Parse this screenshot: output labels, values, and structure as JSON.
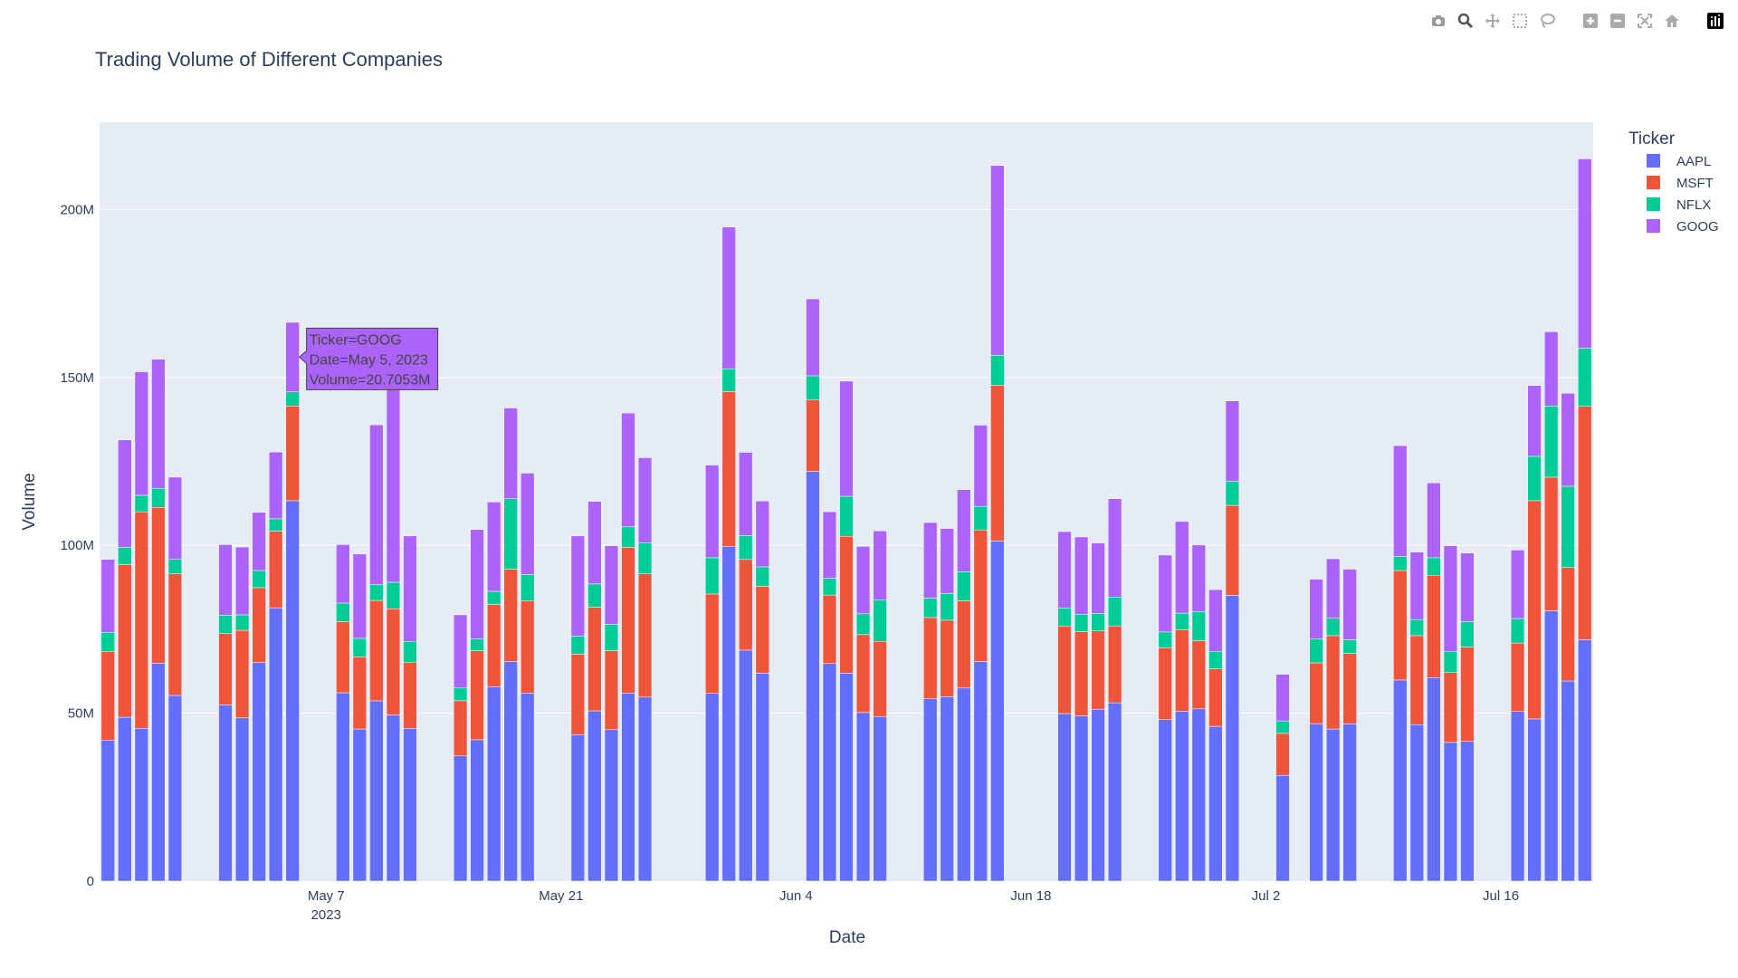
{
  "colors": {
    "AAPL": "#636efa",
    "MSFT": "#EF553B",
    "NFLX": "#00cc96",
    "GOOG": "#ab63fa",
    "plot_bg": "#e5ecf6",
    "grid": "#ffffff",
    "text": "#2a3f5f"
  },
  "modebar": {
    "buttons": [
      "camera-icon",
      "zoom-icon",
      "pan-icon",
      "box-select-icon",
      "lasso-select-icon",
      "zoom-in-icon",
      "zoom-out-icon",
      "autoscale-icon",
      "reset-axes-icon",
      "plotly-logo-icon"
    ]
  },
  "hover": {
    "line1": "Ticker=GOOG",
    "line2": "Date=May 5, 2023",
    "line3": "Volume=20.7053M",
    "date": "2023-05-05",
    "ticker": "GOOG"
  },
  "chart_data": {
    "type": "bar",
    "barmode": "stack",
    "title": "Trading Volume of Different Companies",
    "xlabel": "Date",
    "ylabel": "Volume",
    "ylim": [
      0,
      226
    ],
    "y_unit": "M",
    "yticks": [
      {
        "value": 0,
        "label": "0"
      },
      {
        "value": 50,
        "label": "50M"
      },
      {
        "value": 100,
        "label": "100M"
      },
      {
        "value": 150,
        "label": "150M"
      },
      {
        "value": 200,
        "label": "200M"
      }
    ],
    "xlim": [
      "2023-04-23T12:00",
      "2023-07-21T12:00"
    ],
    "xticks": [
      {
        "date": "2023-05-07",
        "label": "May 7",
        "sublabel": "2023"
      },
      {
        "date": "2023-05-21",
        "label": "May 21",
        "sublabel": ""
      },
      {
        "date": "2023-06-04",
        "label": "Jun 4",
        "sublabel": ""
      },
      {
        "date": "2023-06-18",
        "label": "Jun 18",
        "sublabel": ""
      },
      {
        "date": "2023-07-02",
        "label": "Jul 2",
        "sublabel": ""
      },
      {
        "date": "2023-07-16",
        "label": "Jul 16",
        "sublabel": ""
      }
    ],
    "legend": {
      "title": "Ticker",
      "position": "top-right",
      "items": [
        "AAPL",
        "MSFT",
        "NFLX",
        "GOOG"
      ]
    },
    "grid": true,
    "x": [
      "2023-04-24",
      "2023-04-25",
      "2023-04-26",
      "2023-04-27",
      "2023-04-28",
      "2023-05-01",
      "2023-05-02",
      "2023-05-03",
      "2023-05-04",
      "2023-05-05",
      "2023-05-08",
      "2023-05-09",
      "2023-05-10",
      "2023-05-11",
      "2023-05-12",
      "2023-05-15",
      "2023-05-16",
      "2023-05-17",
      "2023-05-18",
      "2023-05-19",
      "2023-05-22",
      "2023-05-23",
      "2023-05-24",
      "2023-05-25",
      "2023-05-26",
      "2023-05-30",
      "2023-05-31",
      "2023-06-01",
      "2023-06-02",
      "2023-06-05",
      "2023-06-06",
      "2023-06-07",
      "2023-06-08",
      "2023-06-09",
      "2023-06-12",
      "2023-06-13",
      "2023-06-14",
      "2023-06-15",
      "2023-06-16",
      "2023-06-20",
      "2023-06-21",
      "2023-06-22",
      "2023-06-23",
      "2023-06-26",
      "2023-06-27",
      "2023-06-28",
      "2023-06-29",
      "2023-06-30",
      "2023-07-03",
      "2023-07-05",
      "2023-07-06",
      "2023-07-07",
      "2023-07-10",
      "2023-07-11",
      "2023-07-12",
      "2023-07-13",
      "2023-07-14",
      "2023-07-17",
      "2023-07-18",
      "2023-07-19",
      "2023-07-20",
      "2023-07-21"
    ],
    "series": [
      {
        "name": "AAPL",
        "values": [
          42,
          48.8,
          45.5,
          64.9,
          55.3,
          52.5,
          48.6,
          65.1,
          81.4,
          113.3,
          56.1,
          45.3,
          53.7,
          49.5,
          45.5,
          37.3,
          42.1,
          57.9,
          65.4,
          56,
          43.6,
          50.7,
          45.1,
          56,
          54.8,
          55.9,
          99.6,
          68.8,
          61.9,
          122,
          64.8,
          61.9,
          50.2,
          48.9,
          54.3,
          54.9,
          57.5,
          65.4,
          101.3,
          49.9,
          49.2,
          51.2,
          53.1,
          48.1,
          50.6,
          51.3,
          46.1,
          85.1,
          31.5,
          46.9,
          45.3,
          46.8,
          59.9,
          46.6,
          60.6,
          41.3,
          41.6,
          50.5,
          48.3,
          80.5,
          59.6,
          71.9
        ]
      },
      {
        "name": "MSFT",
        "values": [
          26.3,
          45.5,
          64.5,
          46.4,
          36.2,
          21.2,
          26.1,
          22.3,
          22.8,
          28.2,
          21.2,
          21.5,
          29.9,
          31.6,
          19.7,
          16.4,
          26.5,
          24.5,
          27.5,
          27.4,
          24,
          30.9,
          23.5,
          43.4,
          36.7,
          29.6,
          46.2,
          27,
          25.9,
          21.4,
          20.4,
          40.8,
          23.2,
          22.5,
          24.2,
          22.8,
          26,
          39.2,
          46.4,
          26.1,
          25.1,
          23.3,
          22.9,
          21.4,
          24.3,
          20.3,
          17.1,
          26.8,
          12.5,
          18.1,
          27.8,
          21,
          32.6,
          26.5,
          30.5,
          20.8,
          28.1,
          20.4,
          65,
          39.8,
          33.8,
          69.5
        ]
      },
      {
        "name": "NFLX",
        "values": [
          5.8,
          5.1,
          4.9,
          5.7,
          4.3,
          5.5,
          4.6,
          5.1,
          3.7,
          4.2,
          5.5,
          5.5,
          4.7,
          7.9,
          6.2,
          3.8,
          3.5,
          3.9,
          21,
          7.9,
          5.4,
          6.9,
          7.9,
          6.1,
          9.3,
          10.8,
          6.8,
          7.1,
          5.8,
          7.1,
          5,
          11.9,
          6.2,
          12.4,
          5.8,
          7.9,
          8.6,
          7,
          8.9,
          5.3,
          5.2,
          5.2,
          8.5,
          4.7,
          4.9,
          8.6,
          5.1,
          7.2,
          3.7,
          7.2,
          5.2,
          4.1,
          4.2,
          4.8,
          5.2,
          6.2,
          7.6,
          7.3,
          13.2,
          21.2,
          24.2,
          17.3
        ]
      },
      {
        "name": "GOOG",
        "values": [
          21.7,
          32,
          36.8,
          38.4,
          24.5,
          21,
          20.2,
          17.3,
          19.9,
          20.7053,
          17.4,
          25.1,
          47.6,
          57.6,
          31.4,
          21.8,
          32.6,
          26.6,
          27,
          30.2,
          29.8,
          24.6,
          23.4,
          33.9,
          25.3,
          27.6,
          42.2,
          24.8,
          19.6,
          22.9,
          19.8,
          34.3,
          20.1,
          20.5,
          22.5,
          19.4,
          24.5,
          24.2,
          56.5,
          22.8,
          23,
          21,
          29.4,
          22.9,
          27.3,
          19.9,
          18.5,
          23.9,
          13.9,
          17.7,
          17.7,
          21,
          33,
          20.1,
          22.3,
          31.6,
          20.4,
          20.4,
          21.1,
          22.1,
          27.7,
          56.4
        ]
      }
    ]
  }
}
